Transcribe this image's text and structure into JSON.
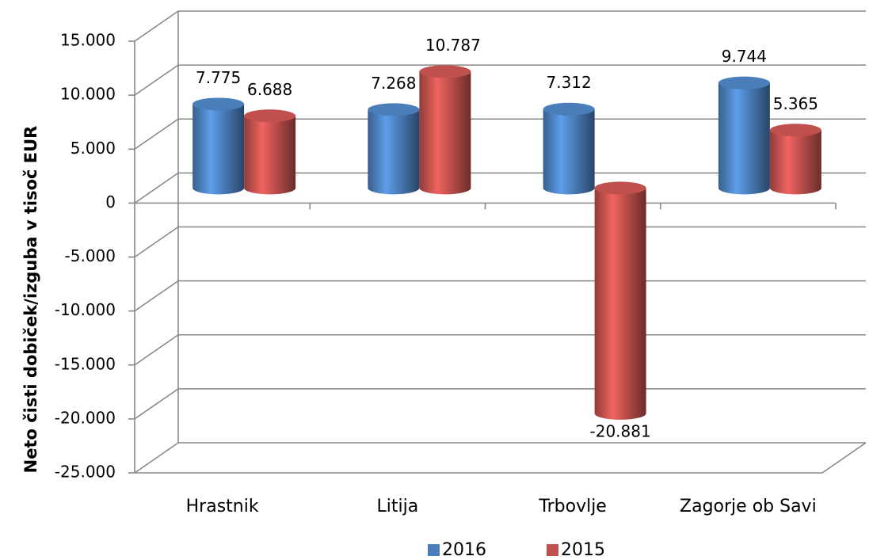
{
  "chart_data": {
    "type": "bar3d",
    "y_label": "Neto čisti dobiček/izguba v tisoč EUR",
    "categories": [
      "Hrastnik",
      "Litija",
      "Trbovlje",
      "Zagorje ob Savi"
    ],
    "series": [
      {
        "name": "2016",
        "color": "#4a7ebb",
        "values": [
          7775,
          7268,
          7312,
          9744
        ],
        "value_labels": [
          "7.775",
          "7.268",
          "7.312",
          "9.744"
        ]
      },
      {
        "name": "2015",
        "color": "#c0504d",
        "values": [
          6688,
          10787,
          -20881,
          5365
        ],
        "value_labels": [
          "6.688",
          "10.787",
          "-20.881",
          "5.365"
        ]
      }
    ],
    "ylim": [
      -25000,
      15000
    ],
    "yticks": [
      {
        "value": -25000,
        "label": "-25.000"
      },
      {
        "value": -20000,
        "label": "-20.000"
      },
      {
        "value": -15000,
        "label": "-15.000"
      },
      {
        "value": -10000,
        "label": "-10.000"
      },
      {
        "value": -5000,
        "label": "-5.000"
      },
      0,
      {
        "value": 5000,
        "label": "5.000"
      },
      {
        "value": 10000,
        "label": "10.000"
      },
      {
        "value": 15000,
        "label": "15.000"
      }
    ],
    "grid": true,
    "legend": "bottom"
  }
}
